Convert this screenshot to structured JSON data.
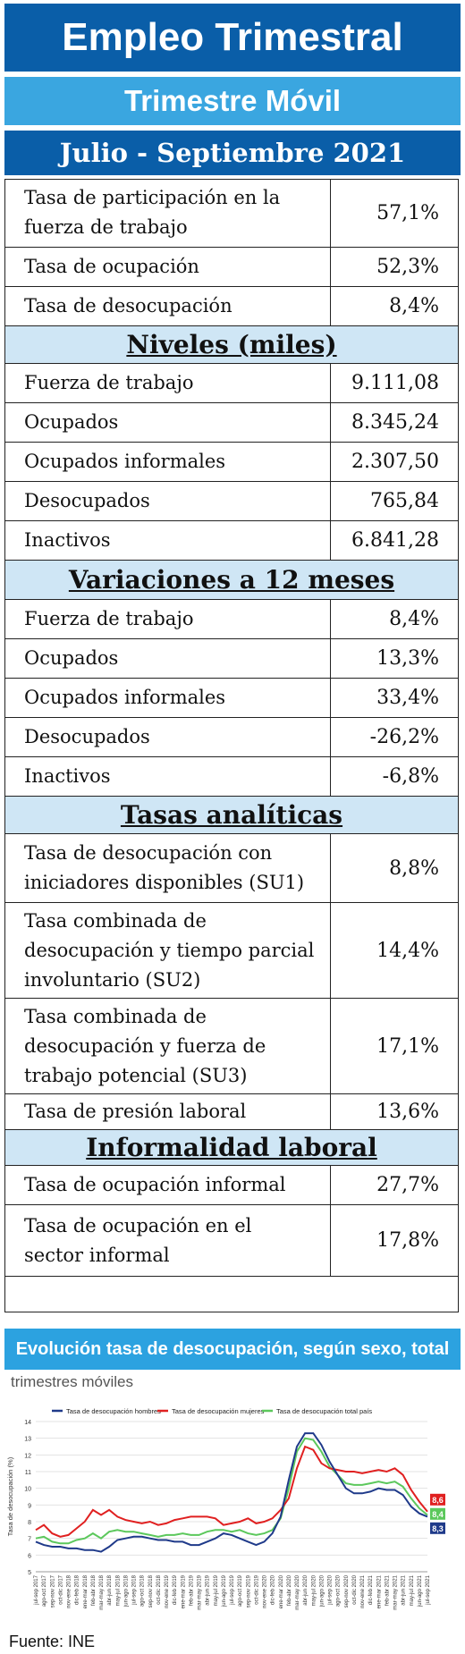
{
  "header": {
    "title": "Empleo Trimestral",
    "subtitle": "Trimestre Móvil",
    "period": "Julio - Septiembre 2021"
  },
  "sections": [
    {
      "heading": null,
      "rows": [
        {
          "label": "Tasa de participación en la fuerza de trabajo",
          "value": "57,1%"
        },
        {
          "label": "Tasa de ocupación",
          "value": "52,3%"
        },
        {
          "label": "Tasa de desocupación",
          "value": "8,4%"
        }
      ]
    },
    {
      "heading": "Niveles  (miles)",
      "rows": [
        {
          "label": "Fuerza de trabajo",
          "value": "9.111,08"
        },
        {
          "label": "Ocupados",
          "value": "8.345,24"
        },
        {
          "label": "Ocupados informales",
          "value": "2.307,50"
        },
        {
          "label": "Desocupados",
          "value": "765,84"
        },
        {
          "label": "Inactivos",
          "value": "6.841,28"
        }
      ]
    },
    {
      "heading": "Variaciones a 12 meses",
      "rows": [
        {
          "label": "Fuerza de trabajo",
          "value": "8,4%"
        },
        {
          "label": "Ocupados",
          "value": "13,3%"
        },
        {
          "label": "Ocupados informales",
          "value": "33,4%"
        },
        {
          "label": "Desocupados",
          "value": "-26,2%"
        },
        {
          "label": "Inactivos",
          "value": "-6,8%"
        }
      ]
    },
    {
      "heading": "Tasas  analíticas",
      "rows": [
        {
          "label": "Tasa de desocupación con iniciadores disponibles (SU1)",
          "value": "8,8%"
        },
        {
          "label": "Tasa combinada de desocupación y tiempo parcial involuntario (SU2)",
          "value": "14,4%"
        },
        {
          "label": "Tasa combinada de desocupación y fuerza de trabajo potencial (SU3)",
          "value": "17,1%"
        },
        {
          "label": "Tasa de presión laboral",
          "value": "13,6%"
        }
      ]
    },
    {
      "heading": "Informalidad  laboral",
      "rows": [
        {
          "label": "Tasa de ocupación informal",
          "value": "27,7%"
        },
        {
          "label": "Tasa de ocupación en el sector informal",
          "value": "17,8%"
        }
      ]
    }
  ],
  "chart_banner": "Evolución tasa de desocupación, según sexo, total país",
  "chart_subtitle": "trimestres móviles",
  "source": "Fuente: INE",
  "colors": {
    "dark_blue": "#0a5ea8",
    "light_blue": "#3aa6e0",
    "section_bg": "#cfe6f5",
    "hombres": "#1f3a8a",
    "mujeres": "#e02020",
    "total": "#5cc85c"
  },
  "chart_data": {
    "type": "line",
    "title": "",
    "xlabel": "",
    "ylabel": "Tasa de desocupación (%)",
    "ylim": [
      5,
      14
    ],
    "yticks": [
      5,
      6,
      7,
      8,
      9,
      10,
      11,
      12,
      13,
      14
    ],
    "x": [
      "jul-sep 2017",
      "ago-oct 2017",
      "sep-nov 2017",
      "oct-dic 2017",
      "nov-ene 2018",
      "dic-feb 2018",
      "ene-mar 2018",
      "feb-abr 2018",
      "mar-may 2018",
      "abr-jun 2018",
      "may-jul 2018",
      "jun-ago 2018",
      "jul-sep 2018",
      "ago-oct 2018",
      "sep-nov 2018",
      "oct-dic 2018",
      "nov-ene 2019",
      "dic-feb 2019",
      "ene-mar 2019",
      "feb-abr 2019",
      "mar-may 2019",
      "abr-jun 2019",
      "may-jul 2019",
      "jun-ago 2019",
      "jul-sep 2019",
      "ago-oct 2019",
      "sep-nov 2019",
      "oct-dic 2019",
      "nov-ene 2020",
      "dic-feb 2020",
      "ene-mar 2020",
      "feb-abr 2020",
      "mar-may 2020",
      "abr-jun 2020",
      "may-jul 2020",
      "jun-ago 2020",
      "jul-sep 2020",
      "ago-oct 2020",
      "sep-nov 2020",
      "oct-dic 2020",
      "nov-ene 2021",
      "dic-feb 2021",
      "ene-mar 2021",
      "feb-abr 2021",
      "mar-may 2021",
      "abr-jun 2021",
      "may-jul 2021",
      "jun-ago 2021",
      "jul-sep 2021"
    ],
    "series": [
      {
        "name": "Tasa de desocupación hombres",
        "color": "#1f3a8a",
        "values": [
          6.8,
          6.6,
          6.5,
          6.5,
          6.4,
          6.4,
          6.3,
          6.3,
          6.2,
          6.5,
          6.9,
          7.0,
          7.1,
          7.1,
          7.0,
          6.9,
          6.9,
          6.8,
          6.8,
          6.6,
          6.6,
          6.8,
          7.0,
          7.3,
          7.2,
          7.0,
          6.8,
          6.6,
          6.8,
          7.3,
          8.3,
          10.5,
          12.5,
          13.3,
          13.3,
          12.6,
          11.6,
          10.8,
          10.0,
          9.7,
          9.7,
          9.8,
          10.0,
          9.9,
          9.9,
          9.6,
          8.9,
          8.5,
          8.3
        ]
      },
      {
        "name": "Tasa de desocupación mujeres",
        "color": "#e02020",
        "values": [
          7.5,
          7.8,
          7.3,
          7.1,
          7.2,
          7.6,
          8.0,
          8.7,
          8.4,
          8.7,
          8.3,
          8.1,
          8.0,
          7.9,
          8.0,
          7.8,
          7.9,
          8.1,
          8.2,
          8.3,
          8.3,
          8.3,
          8.2,
          7.8,
          7.9,
          8.0,
          8.2,
          7.9,
          8.0,
          8.2,
          8.7,
          9.4,
          11.2,
          12.5,
          12.3,
          11.5,
          11.2,
          11.1,
          11.0,
          11.0,
          10.9,
          11.0,
          11.1,
          11.0,
          11.2,
          10.8,
          9.9,
          9.2,
          8.6
        ]
      },
      {
        "name": "Tasa de desocupación total país",
        "color": "#5cc85c",
        "values": [
          7.0,
          7.1,
          6.8,
          6.7,
          6.7,
          6.9,
          7.0,
          7.3,
          7.0,
          7.4,
          7.5,
          7.4,
          7.4,
          7.3,
          7.2,
          7.1,
          7.2,
          7.2,
          7.3,
          7.2,
          7.2,
          7.4,
          7.5,
          7.5,
          7.4,
          7.5,
          7.3,
          7.2,
          7.3,
          7.5,
          8.2,
          10.0,
          12.2,
          13.0,
          12.9,
          12.2,
          11.3,
          10.8,
          10.3,
          10.2,
          10.2,
          10.3,
          10.4,
          10.3,
          10.4,
          10.1,
          9.4,
          8.8,
          8.4
        ]
      }
    ],
    "end_labels": [
      "8,6",
      "8,4",
      "8,3"
    ],
    "legend_position": "top"
  }
}
